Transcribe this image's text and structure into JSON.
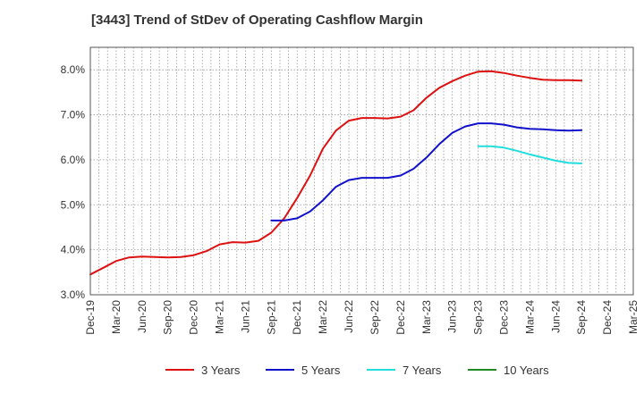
{
  "chart_data": {
    "type": "line",
    "title": "[3443]  Trend of StDev of Operating Cashflow Margin",
    "xlabel": "",
    "ylabel": "",
    "ylim": [
      3.0,
      8.5
    ],
    "yticks": [
      "3.0%",
      "4.0%",
      "5.0%",
      "6.0%",
      "7.0%",
      "8.0%"
    ],
    "ytick_values": [
      3.0,
      4.0,
      5.0,
      6.0,
      7.0,
      8.0
    ],
    "xticks": [
      "Dec-19",
      "Mar-20",
      "Jun-20",
      "Sep-20",
      "Dec-20",
      "Mar-21",
      "Jun-21",
      "Sep-21",
      "Dec-21",
      "Mar-22",
      "Jun-22",
      "Sep-22",
      "Dec-22",
      "Mar-23",
      "Jun-23",
      "Sep-23",
      "Dec-23",
      "Mar-24",
      "Jun-24",
      "Sep-24",
      "Dec-24",
      "Mar-25"
    ],
    "xlim_quarters": [
      0,
      21
    ],
    "grid": true,
    "legend_position": "bottom",
    "series": [
      {
        "name": "3 Years",
        "color": "#dd1111",
        "points": [
          [
            0,
            3.45
          ],
          [
            0.5,
            3.6
          ],
          [
            1,
            3.75
          ],
          [
            1.5,
            3.83
          ],
          [
            2,
            3.85
          ],
          [
            2.5,
            3.84
          ],
          [
            3,
            3.83
          ],
          [
            3.5,
            3.84
          ],
          [
            4,
            3.88
          ],
          [
            4.5,
            3.97
          ],
          [
            5,
            4.12
          ],
          [
            5.5,
            4.17
          ],
          [
            6,
            4.16
          ],
          [
            6.5,
            4.2
          ],
          [
            7,
            4.38
          ],
          [
            7.5,
            4.7
          ],
          [
            8,
            5.15
          ],
          [
            8.5,
            5.65
          ],
          [
            9,
            6.25
          ],
          [
            9.5,
            6.65
          ],
          [
            10,
            6.87
          ],
          [
            10.5,
            6.93
          ],
          [
            11,
            6.93
          ],
          [
            11.5,
            6.92
          ],
          [
            12,
            6.96
          ],
          [
            12.5,
            7.1
          ],
          [
            13,
            7.38
          ],
          [
            13.5,
            7.6
          ],
          [
            14,
            7.75
          ],
          [
            14.5,
            7.87
          ],
          [
            15,
            7.96
          ],
          [
            15.5,
            7.97
          ],
          [
            16,
            7.93
          ],
          [
            16.5,
            7.87
          ],
          [
            17,
            7.82
          ],
          [
            17.5,
            7.78
          ],
          [
            18,
            7.77
          ],
          [
            18.5,
            7.77
          ],
          [
            19,
            7.76
          ]
        ]
      },
      {
        "name": "5 Years",
        "color": "#1111cc",
        "points": [
          [
            7,
            4.65
          ],
          [
            7.5,
            4.65
          ],
          [
            8,
            4.7
          ],
          [
            8.5,
            4.85
          ],
          [
            9,
            5.1
          ],
          [
            9.5,
            5.4
          ],
          [
            10,
            5.55
          ],
          [
            10.5,
            5.6
          ],
          [
            11,
            5.6
          ],
          [
            11.5,
            5.6
          ],
          [
            12,
            5.65
          ],
          [
            12.5,
            5.8
          ],
          [
            13,
            6.05
          ],
          [
            13.5,
            6.35
          ],
          [
            14,
            6.6
          ],
          [
            14.5,
            6.74
          ],
          [
            15,
            6.81
          ],
          [
            15.5,
            6.81
          ],
          [
            16,
            6.78
          ],
          [
            16.5,
            6.72
          ],
          [
            17,
            6.69
          ],
          [
            17.5,
            6.68
          ],
          [
            18,
            6.66
          ],
          [
            18.5,
            6.65
          ],
          [
            19,
            6.66
          ]
        ]
      },
      {
        "name": "7 Years",
        "color": "#22dddd",
        "points": [
          [
            15,
            6.3
          ],
          [
            15.5,
            6.3
          ],
          [
            16,
            6.27
          ],
          [
            16.5,
            6.2
          ],
          [
            17,
            6.12
          ],
          [
            17.5,
            6.05
          ],
          [
            18,
            5.98
          ],
          [
            18.5,
            5.93
          ],
          [
            19,
            5.92
          ]
        ]
      },
      {
        "name": "10 Years",
        "color": "#228822",
        "points": []
      }
    ]
  }
}
